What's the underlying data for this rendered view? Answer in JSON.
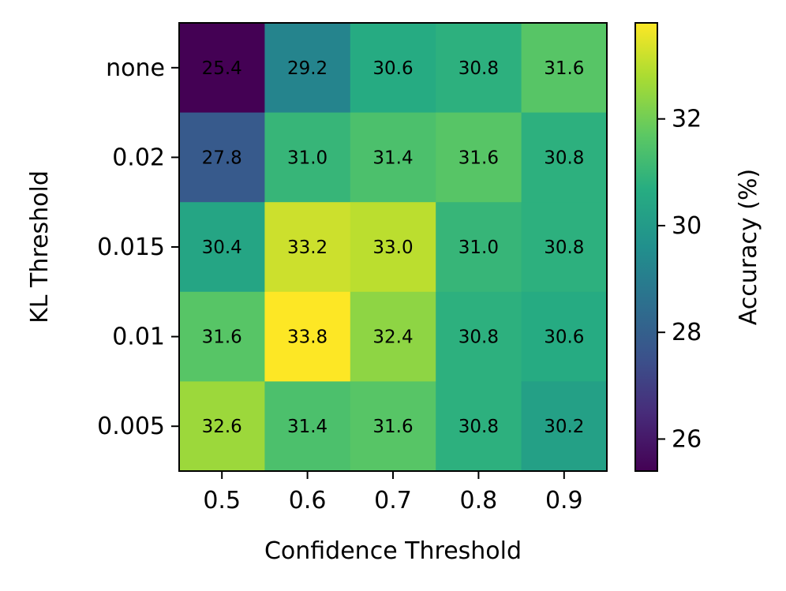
{
  "chart_data": {
    "type": "heatmap",
    "xlabel": "Confidence Threshold",
    "ylabel": "KL Threshold",
    "x_categories": [
      "0.5",
      "0.6",
      "0.7",
      "0.8",
      "0.9"
    ],
    "y_categories": [
      "none",
      "0.02",
      "0.015",
      "0.01",
      "0.005"
    ],
    "values": [
      [
        25.4,
        29.2,
        30.6,
        30.8,
        31.6
      ],
      [
        27.8,
        31.0,
        31.4,
        31.6,
        30.8
      ],
      [
        30.4,
        33.2,
        33.0,
        31.0,
        30.8
      ],
      [
        31.6,
        33.8,
        32.4,
        30.8,
        30.6
      ],
      [
        32.6,
        31.4,
        31.6,
        30.8,
        30.2
      ]
    ],
    "cell_labels": [
      [
        "25.4",
        "29.2",
        "30.6",
        "30.8",
        "31.6"
      ],
      [
        "27.8",
        "31.0",
        "31.4",
        "31.6",
        "30.8"
      ],
      [
        "30.4",
        "33.2",
        "33.0",
        "31.0",
        "30.8"
      ],
      [
        "31.6",
        "33.8",
        "32.4",
        "30.8",
        "30.6"
      ],
      [
        "32.6",
        "31.4",
        "31.6",
        "30.8",
        "30.2"
      ]
    ],
    "colorbar": {
      "label": "Accuracy (%)",
      "range": [
        25.4,
        33.8
      ],
      "ticks": [
        26,
        28,
        30,
        32
      ],
      "tick_labels": [
        "26",
        "28",
        "30",
        "32"
      ],
      "colormap": "viridis"
    }
  }
}
